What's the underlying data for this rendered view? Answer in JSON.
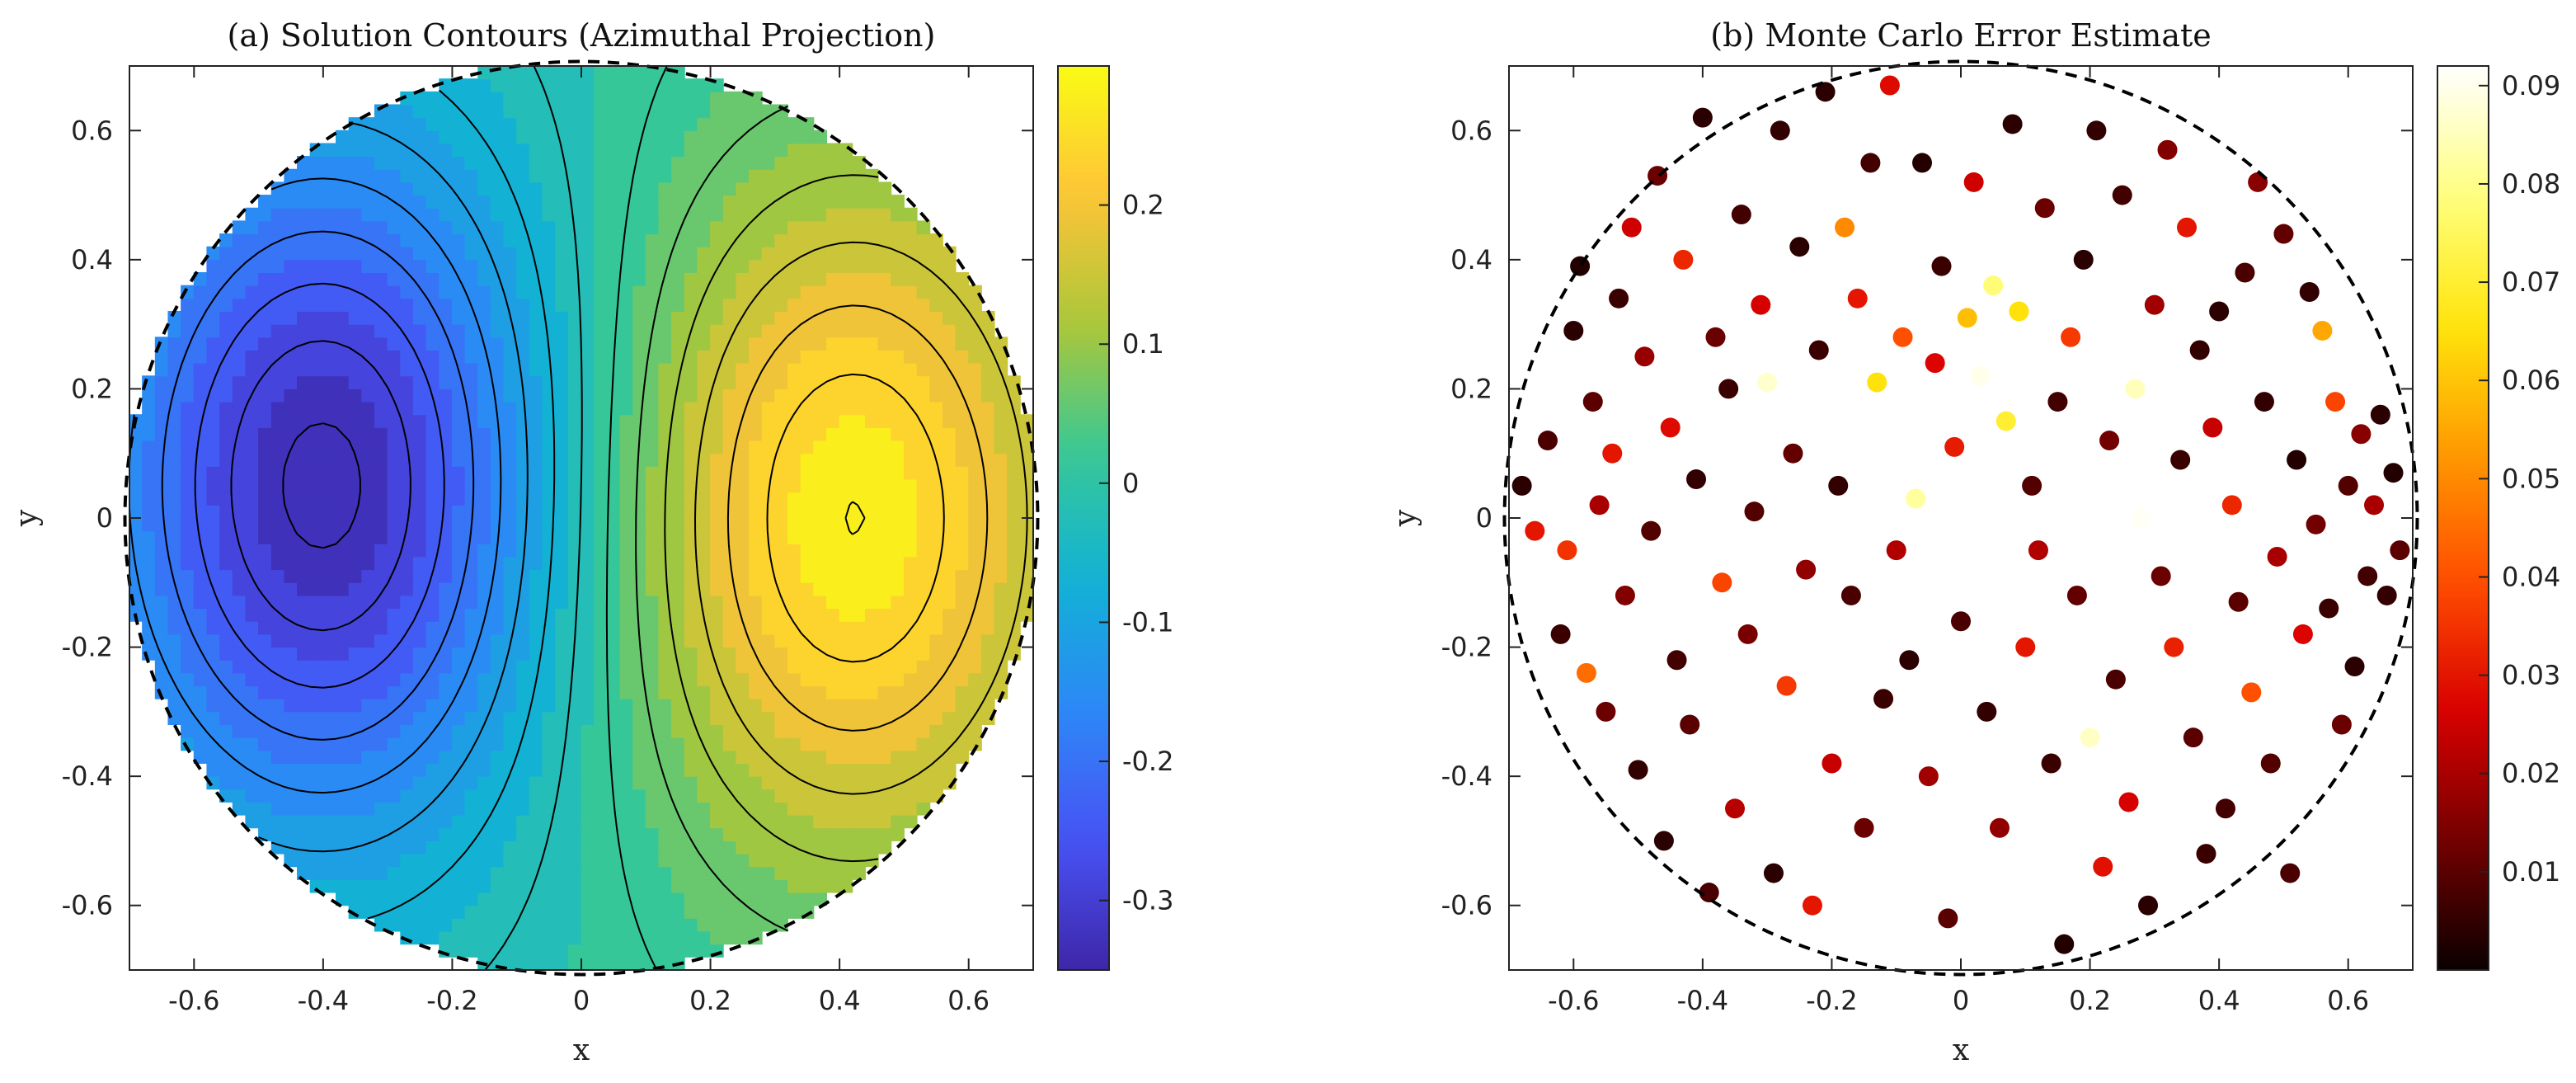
{
  "chart_data": [
    {
      "type": "contour",
      "title": "(a) Solution Contours (Azimuthal Projection)",
      "xlabel": "x",
      "ylabel": "y",
      "xlim": [
        -0.7,
        0.7
      ],
      "ylim": [
        -0.7,
        0.7
      ],
      "xticks": [
        -0.6,
        -0.4,
        -0.2,
        0,
        0.2,
        0.4,
        0.6
      ],
      "yticks": [
        -0.6,
        -0.4,
        -0.2,
        0,
        0.2,
        0.4,
        0.6
      ],
      "xtick_labels": [
        "-0.6",
        "-0.4",
        "-0.2",
        "0",
        "0.2",
        "0.4",
        "0.6"
      ],
      "ytick_labels": [
        "0.6",
        "0.4",
        "0.2",
        "0",
        "-0.2",
        "-0.4",
        "-0.6"
      ],
      "boundary_radius": 0.707,
      "extrema": [
        {
          "x": -0.4,
          "y": 0.05,
          "value": -0.34
        },
        {
          "x": 0.42,
          "y": 0.0,
          "value": 0.28
        }
      ],
      "colorbar": {
        "colormap": "parula",
        "limits": [
          -0.35,
          0.3
        ],
        "ticks": [
          0.2,
          0.1,
          0,
          -0.1,
          -0.2,
          -0.3
        ],
        "tick_labels": [
          "0.2",
          "0.1",
          "0",
          "-0.1",
          "-0.2",
          "-0.3"
        ]
      },
      "contour_line_color": "#000000"
    },
    {
      "type": "scatter",
      "title": "(b) Monte Carlo Error Estimate",
      "xlabel": "x",
      "ylabel": "y",
      "xlim": [
        -0.7,
        0.7
      ],
      "ylim": [
        -0.7,
        0.7
      ],
      "xticks": [
        -0.6,
        -0.4,
        -0.2,
        0,
        0.2,
        0.4,
        0.6
      ],
      "yticks": [
        -0.6,
        -0.4,
        -0.2,
        0,
        0.2,
        0.4,
        0.6
      ],
      "xtick_labels": [
        "-0.6",
        "-0.4",
        "-0.2",
        "0",
        "0.2",
        "0.4",
        "0.6"
      ],
      "ytick_labels": [
        "0.6",
        "0.4",
        "0.2",
        "0",
        "-0.2",
        "-0.4",
        "-0.6"
      ],
      "boundary_radius": 0.707,
      "colorbar": {
        "colormap": "hot",
        "limits": [
          0.0,
          0.092
        ],
        "ticks": [
          0.09,
          0.08,
          0.07,
          0.06,
          0.05,
          0.04,
          0.03,
          0.02,
          0.01
        ],
        "tick_labels": [
          "0.09",
          "0.08",
          "0.07",
          "0.06",
          "0.05",
          "0.04",
          "0.03",
          "0.02",
          "0.01"
        ]
      },
      "points": [
        [
          -0.68,
          0.05,
          0.004
        ],
        [
          -0.66,
          -0.02,
          0.03
        ],
        [
          -0.64,
          0.12,
          0.008
        ],
        [
          -0.62,
          -0.18,
          0.006
        ],
        [
          -0.61,
          -0.05,
          0.035
        ],
        [
          -0.6,
          0.29,
          0.004
        ],
        [
          -0.59,
          0.39,
          0.003
        ],
        [
          -0.58,
          -0.24,
          0.045
        ],
        [
          -0.57,
          0.18,
          0.01
        ],
        [
          -0.56,
          0.02,
          0.02
        ],
        [
          -0.55,
          -0.3,
          0.012
        ],
        [
          -0.54,
          0.1,
          0.03
        ],
        [
          -0.53,
          0.34,
          0.006
        ],
        [
          -0.52,
          -0.12,
          0.015
        ],
        [
          -0.51,
          0.45,
          0.025
        ],
        [
          -0.5,
          -0.39,
          0.005
        ],
        [
          -0.49,
          0.25,
          0.018
        ],
        [
          -0.48,
          -0.02,
          0.009
        ],
        [
          -0.47,
          0.53,
          0.012
        ],
        [
          -0.46,
          -0.5,
          0.004
        ],
        [
          -0.45,
          0.14,
          0.028
        ],
        [
          -0.44,
          -0.22,
          0.007
        ],
        [
          -0.43,
          0.4,
          0.033
        ],
        [
          -0.42,
          -0.32,
          0.01
        ],
        [
          -0.41,
          0.06,
          0.005
        ],
        [
          -0.4,
          0.62,
          0.004
        ],
        [
          -0.39,
          -0.58,
          0.008
        ],
        [
          -0.38,
          0.28,
          0.012
        ],
        [
          -0.37,
          -0.1,
          0.038
        ],
        [
          -0.36,
          0.2,
          0.006
        ],
        [
          -0.35,
          -0.45,
          0.022
        ],
        [
          -0.34,
          0.47,
          0.007
        ],
        [
          -0.33,
          -0.18,
          0.014
        ],
        [
          -0.32,
          0.01,
          0.009
        ],
        [
          -0.31,
          0.33,
          0.026
        ],
        [
          -0.3,
          0.21,
          0.087
        ],
        [
          -0.29,
          -0.55,
          0.004
        ],
        [
          -0.28,
          0.6,
          0.005
        ],
        [
          -0.27,
          -0.26,
          0.036
        ],
        [
          -0.26,
          0.1,
          0.011
        ],
        [
          -0.25,
          0.42,
          0.004
        ],
        [
          -0.24,
          -0.08,
          0.017
        ],
        [
          -0.23,
          -0.6,
          0.03
        ],
        [
          -0.22,
          0.26,
          0.006
        ],
        [
          -0.21,
          0.66,
          0.004
        ],
        [
          -0.2,
          -0.38,
          0.024
        ],
        [
          -0.19,
          0.05,
          0.005
        ],
        [
          -0.18,
          0.45,
          0.05
        ],
        [
          -0.17,
          -0.12,
          0.008
        ],
        [
          -0.16,
          0.34,
          0.03
        ],
        [
          -0.15,
          -0.48,
          0.012
        ],
        [
          -0.14,
          0.55,
          0.007
        ],
        [
          -0.13,
          0.21,
          0.065
        ],
        [
          -0.12,
          -0.28,
          0.006
        ],
        [
          -0.11,
          0.67,
          0.028
        ],
        [
          -0.1,
          -0.05,
          0.021
        ],
        [
          -0.09,
          0.28,
          0.04
        ],
        [
          -0.08,
          -0.22,
          0.004
        ],
        [
          -0.07,
          0.03,
          0.082
        ],
        [
          -0.06,
          0.55,
          0.003
        ],
        [
          -0.05,
          -0.4,
          0.019
        ],
        [
          -0.04,
          0.24,
          0.027
        ],
        [
          -0.03,
          0.39,
          0.006
        ],
        [
          -0.02,
          -0.62,
          0.01
        ],
        [
          -0.01,
          0.11,
          0.031
        ],
        [
          0.0,
          -0.16,
          0.008
        ],
        [
          0.01,
          0.31,
          0.059
        ],
        [
          0.02,
          0.52,
          0.025
        ],
        [
          0.03,
          0.22,
          0.09
        ],
        [
          0.04,
          -0.3,
          0.005
        ],
        [
          0.05,
          0.36,
          0.078
        ],
        [
          0.06,
          -0.48,
          0.017
        ],
        [
          0.07,
          0.15,
          0.07
        ],
        [
          0.08,
          0.61,
          0.004
        ],
        [
          0.09,
          0.32,
          0.065
        ],
        [
          0.1,
          -0.2,
          0.03
        ],
        [
          0.11,
          0.05,
          0.009
        ],
        [
          0.12,
          -0.05,
          0.021
        ],
        [
          0.13,
          0.48,
          0.012
        ],
        [
          0.14,
          -0.38,
          0.006
        ],
        [
          0.15,
          0.18,
          0.007
        ],
        [
          0.16,
          -0.66,
          0.003
        ],
        [
          0.17,
          0.28,
          0.036
        ],
        [
          0.18,
          -0.12,
          0.011
        ],
        [
          0.19,
          0.4,
          0.004
        ],
        [
          0.2,
          -0.34,
          0.086
        ],
        [
          0.21,
          0.6,
          0.005
        ],
        [
          0.22,
          -0.54,
          0.029
        ],
        [
          0.23,
          0.12,
          0.013
        ],
        [
          0.24,
          -0.25,
          0.008
        ],
        [
          0.25,
          0.5,
          0.007
        ],
        [
          0.26,
          -0.44,
          0.026
        ],
        [
          0.27,
          0.2,
          0.085
        ],
        [
          0.28,
          0.0,
          0.091
        ],
        [
          0.29,
          -0.6,
          0.004
        ],
        [
          0.3,
          0.33,
          0.019
        ],
        [
          0.31,
          -0.09,
          0.012
        ],
        [
          0.32,
          0.57,
          0.015
        ],
        [
          0.33,
          -0.2,
          0.032
        ],
        [
          0.34,
          0.09,
          0.006
        ],
        [
          0.35,
          0.45,
          0.03
        ],
        [
          0.36,
          -0.34,
          0.01
        ],
        [
          0.37,
          0.26,
          0.005
        ],
        [
          0.38,
          -0.52,
          0.006
        ],
        [
          0.39,
          0.14,
          0.024
        ],
        [
          0.4,
          0.32,
          0.004
        ],
        [
          0.41,
          -0.45,
          0.007
        ],
        [
          0.42,
          0.02,
          0.033
        ],
        [
          0.43,
          -0.13,
          0.01
        ],
        [
          0.44,
          0.38,
          0.008
        ],
        [
          0.45,
          -0.27,
          0.04
        ],
        [
          0.46,
          0.52,
          0.016
        ],
        [
          0.47,
          0.18,
          0.005
        ],
        [
          0.48,
          -0.38,
          0.009
        ],
        [
          0.49,
          -0.06,
          0.02
        ],
        [
          0.5,
          0.44,
          0.011
        ],
        [
          0.51,
          -0.55,
          0.008
        ],
        [
          0.52,
          0.09,
          0.003
        ],
        [
          0.53,
          -0.18,
          0.027
        ],
        [
          0.54,
          0.35,
          0.005
        ],
        [
          0.55,
          -0.01,
          0.013
        ],
        [
          0.56,
          0.29,
          0.055
        ],
        [
          0.57,
          -0.14,
          0.006
        ],
        [
          0.58,
          0.18,
          0.038
        ],
        [
          0.59,
          -0.32,
          0.012
        ],
        [
          0.6,
          0.05,
          0.009
        ],
        [
          0.61,
          -0.23,
          0.004
        ],
        [
          0.62,
          0.13,
          0.016
        ],
        [
          0.63,
          -0.09,
          0.007
        ],
        [
          0.64,
          0.02,
          0.02
        ],
        [
          0.65,
          0.16,
          0.004
        ],
        [
          0.66,
          -0.12,
          0.005
        ],
        [
          0.67,
          0.07,
          0.003
        ],
        [
          0.68,
          -0.05,
          0.01
        ]
      ]
    }
  ]
}
